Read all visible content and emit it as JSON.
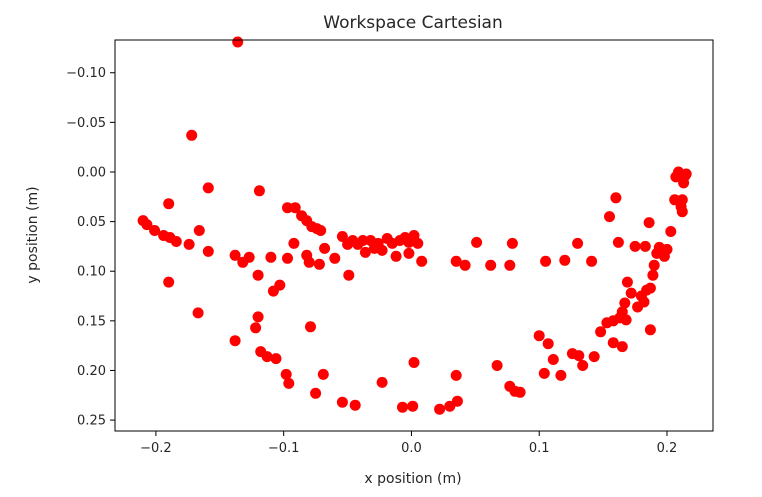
{
  "chart_data": {
    "type": "scatter",
    "title": "Workspace Cartesian",
    "xlabel": "x position (m)",
    "ylabel": "y position (m)",
    "xlim": [
      -0.232,
      0.236
    ],
    "ylim": [
      -0.133,
      0.261
    ],
    "y_inverted": true,
    "grid": false,
    "xticks": [
      -0.2,
      -0.1,
      0.0,
      0.1,
      0.2
    ],
    "xtick_labels": [
      "−0.2",
      "−0.1",
      "0.0",
      "0.1",
      "0.2"
    ],
    "yticks": [
      -0.1,
      -0.05,
      0.0,
      0.05,
      0.1,
      0.15,
      0.2,
      0.25
    ],
    "ytick_labels": [
      "−0.10",
      "−0.05",
      "0.00",
      "0.05",
      "0.10",
      "0.15",
      "0.20",
      "0.25"
    ],
    "marker_color": "#ff0000",
    "series": [
      {
        "color": "#ff0000",
        "points": [
          [
            -0.136,
            -0.131
          ],
          [
            -0.172,
            -0.037
          ],
          [
            -0.159,
            0.016
          ],
          [
            -0.19,
            0.032
          ],
          [
            -0.21,
            0.049
          ],
          [
            -0.207,
            0.053
          ],
          [
            -0.201,
            0.059
          ],
          [
            -0.194,
            0.064
          ],
          [
            -0.189,
            0.066
          ],
          [
            -0.184,
            0.07
          ],
          [
            -0.174,
            0.073
          ],
          [
            -0.166,
            0.059
          ],
          [
            -0.159,
            0.08
          ],
          [
            -0.19,
            0.111
          ],
          [
            -0.167,
            0.142
          ],
          [
            -0.119,
            0.019
          ],
          [
            -0.138,
            0.084
          ],
          [
            -0.132,
            0.091
          ],
          [
            -0.127,
            0.086
          ],
          [
            -0.12,
            0.104
          ],
          [
            -0.11,
            0.086
          ],
          [
            -0.108,
            0.12
          ],
          [
            -0.103,
            0.114
          ],
          [
            -0.097,
            0.036
          ],
          [
            -0.091,
            0.036
          ],
          [
            -0.086,
            0.044
          ],
          [
            -0.082,
            0.049
          ],
          [
            -0.078,
            0.055
          ],
          [
            -0.074,
            0.057
          ],
          [
            -0.071,
            0.059
          ],
          [
            -0.097,
            0.087
          ],
          [
            -0.092,
            0.072
          ],
          [
            -0.082,
            0.084
          ],
          [
            -0.08,
            0.091
          ],
          [
            -0.072,
            0.093
          ],
          [
            -0.068,
            0.077
          ],
          [
            -0.06,
            0.087
          ],
          [
            -0.054,
            0.065
          ],
          [
            -0.05,
            0.073
          ],
          [
            -0.046,
            0.069
          ],
          [
            -0.042,
            0.073
          ],
          [
            -0.038,
            0.069
          ],
          [
            -0.036,
            0.081
          ],
          [
            -0.032,
            0.069
          ],
          [
            -0.029,
            0.077
          ],
          [
            -0.026,
            0.072
          ],
          [
            -0.023,
            0.079
          ],
          [
            -0.019,
            0.067
          ],
          [
            -0.015,
            0.072
          ],
          [
            -0.012,
            0.085
          ],
          [
            -0.009,
            0.069
          ],
          [
            -0.005,
            0.066
          ],
          [
            -0.002,
            0.071
          ],
          [
            0.002,
            0.064
          ],
          [
            0.005,
            0.072
          ],
          [
            -0.002,
            0.082
          ],
          [
            0.008,
            0.09
          ],
          [
            -0.049,
            0.104
          ],
          [
            0.035,
            0.09
          ],
          [
            0.042,
            0.094
          ],
          [
            0.051,
            0.071
          ],
          [
            0.062,
            0.094
          ],
          [
            0.077,
            0.094
          ],
          [
            0.079,
            0.072
          ],
          [
            0.105,
            0.09
          ],
          [
            0.12,
            0.089
          ],
          [
            0.13,
            0.072
          ],
          [
            0.141,
            0.09
          ],
          [
            -0.138,
            0.17
          ],
          [
            -0.122,
            0.157
          ],
          [
            -0.12,
            0.146
          ],
          [
            -0.118,
            0.181
          ],
          [
            -0.113,
            0.186
          ],
          [
            -0.106,
            0.188
          ],
          [
            -0.098,
            0.204
          ],
          [
            -0.096,
            0.213
          ],
          [
            -0.079,
            0.156
          ],
          [
            -0.075,
            0.223
          ],
          [
            -0.069,
            0.204
          ],
          [
            -0.054,
            0.232
          ],
          [
            -0.044,
            0.235
          ],
          [
            -0.023,
            0.212
          ],
          [
            -0.007,
            0.237
          ],
          [
            0.002,
            0.192
          ],
          [
            0.001,
            0.236
          ],
          [
            0.022,
            0.239
          ],
          [
            0.03,
            0.236
          ],
          [
            0.035,
            0.205
          ],
          [
            0.036,
            0.231
          ],
          [
            0.067,
            0.195
          ],
          [
            0.077,
            0.216
          ],
          [
            0.081,
            0.221
          ],
          [
            0.085,
            0.222
          ],
          [
            0.1,
            0.165
          ],
          [
            0.104,
            0.203
          ],
          [
            0.107,
            0.173
          ],
          [
            0.111,
            0.189
          ],
          [
            0.117,
            0.205
          ],
          [
            0.126,
            0.183
          ],
          [
            0.131,
            0.185
          ],
          [
            0.134,
            0.195
          ],
          [
            0.143,
            0.186
          ],
          [
            0.148,
            0.161
          ],
          [
            0.153,
            0.152
          ],
          [
            0.155,
            0.045
          ],
          [
            0.158,
            0.172
          ],
          [
            0.158,
            0.15
          ],
          [
            0.16,
            0.026
          ],
          [
            0.162,
            0.071
          ],
          [
            0.163,
            0.147
          ],
          [
            0.165,
            0.141
          ],
          [
            0.165,
            0.176
          ],
          [
            0.167,
            0.132
          ],
          [
            0.168,
            0.149
          ],
          [
            0.169,
            0.111
          ],
          [
            0.172,
            0.122
          ],
          [
            0.175,
            0.075
          ],
          [
            0.177,
            0.136
          ],
          [
            0.18,
            0.125
          ],
          [
            0.182,
            0.131
          ],
          [
            0.183,
            0.075
          ],
          [
            0.184,
            0.119
          ],
          [
            0.186,
            0.051
          ],
          [
            0.187,
            0.117
          ],
          [
            0.187,
            0.159
          ],
          [
            0.189,
            0.104
          ],
          [
            0.19,
            0.094
          ],
          [
            0.192,
            0.082
          ],
          [
            0.194,
            0.076
          ],
          [
            0.196,
            0.082
          ],
          [
            0.198,
            0.085
          ],
          [
            0.2,
            0.078
          ],
          [
            0.203,
            0.06
          ],
          [
            0.206,
            0.028
          ],
          [
            0.207,
            0.005
          ],
          [
            0.209,
            0.0
          ],
          [
            0.21,
            0.004
          ],
          [
            0.211,
            0.035
          ],
          [
            0.212,
            0.028
          ],
          [
            0.212,
            0.04
          ],
          [
            0.213,
            0.011
          ],
          [
            0.214,
            0.004
          ],
          [
            0.215,
            0.002
          ]
        ]
      }
    ]
  }
}
